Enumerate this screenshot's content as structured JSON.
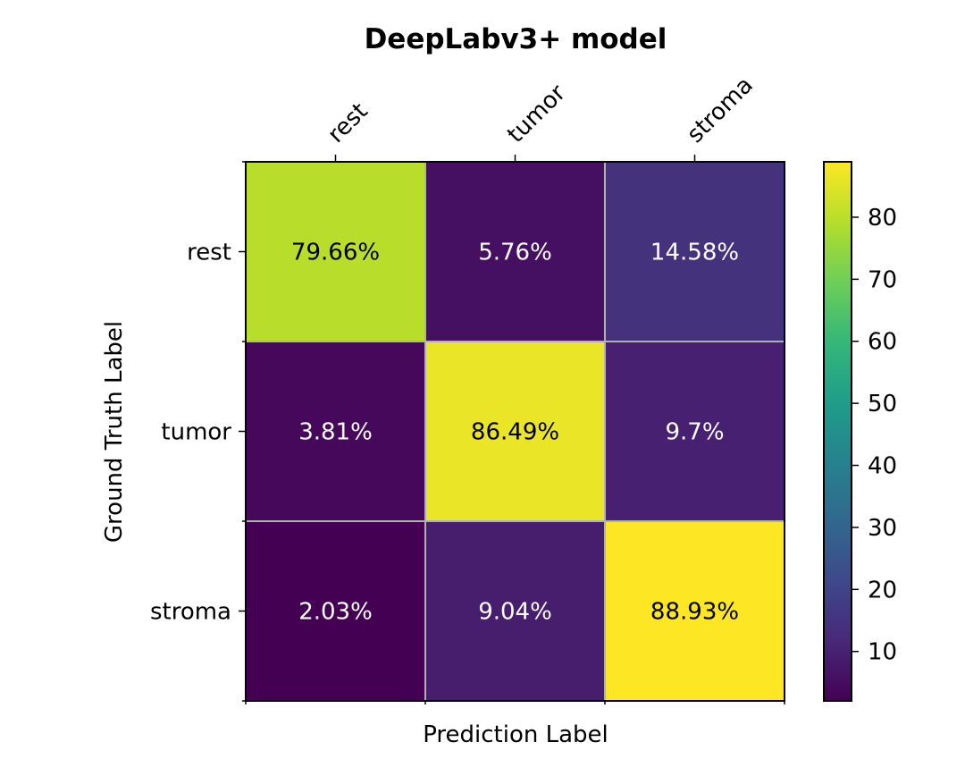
{
  "chart_data": {
    "type": "heatmap",
    "title": "DeepLabv3+ model",
    "xlabel": "Prediction Label",
    "ylabel": "Ground Truth Label",
    "x_categories": [
      "rest",
      "tumor",
      "stroma"
    ],
    "y_categories": [
      "rest",
      "tumor",
      "stroma"
    ],
    "values": [
      [
        79.66,
        5.76,
        14.58
      ],
      [
        3.81,
        86.49,
        9.7
      ],
      [
        2.03,
        9.04,
        88.93
      ]
    ],
    "cell_labels": [
      [
        "79.66%",
        "5.76%",
        "14.58%"
      ],
      [
        "3.81%",
        "86.49%",
        "9.7%"
      ],
      [
        "2.03%",
        "9.04%",
        "88.93%"
      ]
    ],
    "colormap": "viridis",
    "color_range": [
      2.03,
      88.93
    ],
    "colorbar_ticks": [
      10,
      20,
      30,
      40,
      50,
      60,
      70,
      80
    ],
    "grid": true,
    "x_tick_position": "top",
    "legend": "colorbar-right"
  }
}
